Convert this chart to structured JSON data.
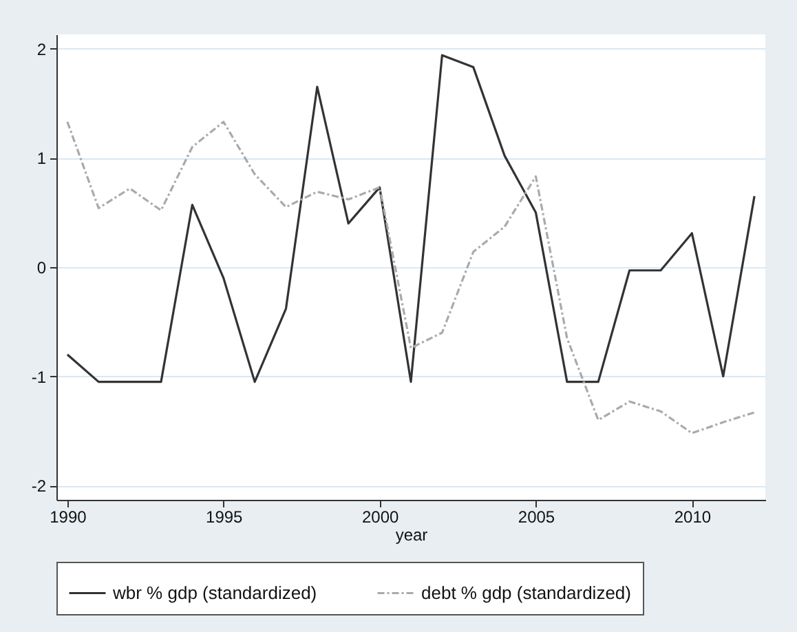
{
  "chart_data": {
    "type": "line",
    "xlabel": "year",
    "x": [
      1990,
      1991,
      1992,
      1993,
      1994,
      1995,
      1996,
      1997,
      1998,
      1999,
      2000,
      2001,
      2002,
      2003,
      2004,
      2005,
      2006,
      2007,
      2008,
      2009,
      2010,
      2011,
      2012
    ],
    "series": [
      {
        "name": "wbr % gdp (standardized)",
        "color": "#333333",
        "line_style": "solid",
        "values": [
          -0.8,
          -1.05,
          -1.05,
          -1.05,
          0.57,
          -0.1,
          -1.05,
          -0.38,
          1.65,
          0.4,
          0.73,
          -1.05,
          1.94,
          1.83,
          1.02,
          0.5,
          -1.05,
          -1.05,
          -0.03,
          -0.03,
          0.31,
          -1.0,
          0.65
        ]
      },
      {
        "name": "debt % gdp (standardized)",
        "color": "#aaaaaa",
        "line_style": "dashed",
        "values": [
          1.33,
          0.54,
          0.72,
          0.52,
          1.1,
          1.33,
          0.85,
          0.55,
          0.69,
          0.62,
          0.73,
          -0.74,
          -0.6,
          0.14,
          0.37,
          0.83,
          -0.65,
          -1.4,
          -1.23,
          -1.32,
          -1.52,
          -1.42,
          -1.33
        ]
      }
    ],
    "xlim": [
      1989.65,
      2012.35
    ],
    "xticks": [
      1990,
      1995,
      2000,
      2005,
      2010
    ],
    "ylim": [
      -2.13,
      2.13
    ],
    "yticks": [
      -2,
      -1,
      0,
      1,
      2
    ],
    "grid": "y",
    "legend": "bottom",
    "marker": "none"
  }
}
